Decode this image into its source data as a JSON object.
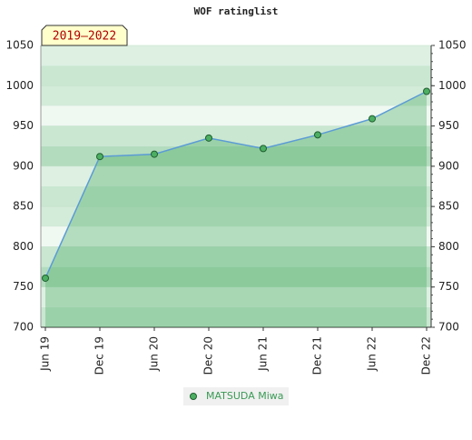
{
  "chart_data": {
    "type": "line",
    "title": "WOF ratinglist",
    "annotation": "2019–2022",
    "categories": [
      "Jun 19",
      "Dec 19",
      "Jun 20",
      "Dec 20",
      "Jun 21",
      "Dec 21",
      "Jun 22",
      "Dec 22"
    ],
    "series": [
      {
        "name": "MATSUDA Miwa",
        "color": "#5b9bd5",
        "marker_color": "#4caf62",
        "values": [
          761,
          912,
          915,
          935,
          922,
          939,
          959,
          993
        ]
      }
    ],
    "ylim": [
      700,
      1050
    ],
    "yticks": [
      700,
      750,
      800,
      850,
      900,
      950,
      1000,
      1050
    ],
    "grid": true
  }
}
